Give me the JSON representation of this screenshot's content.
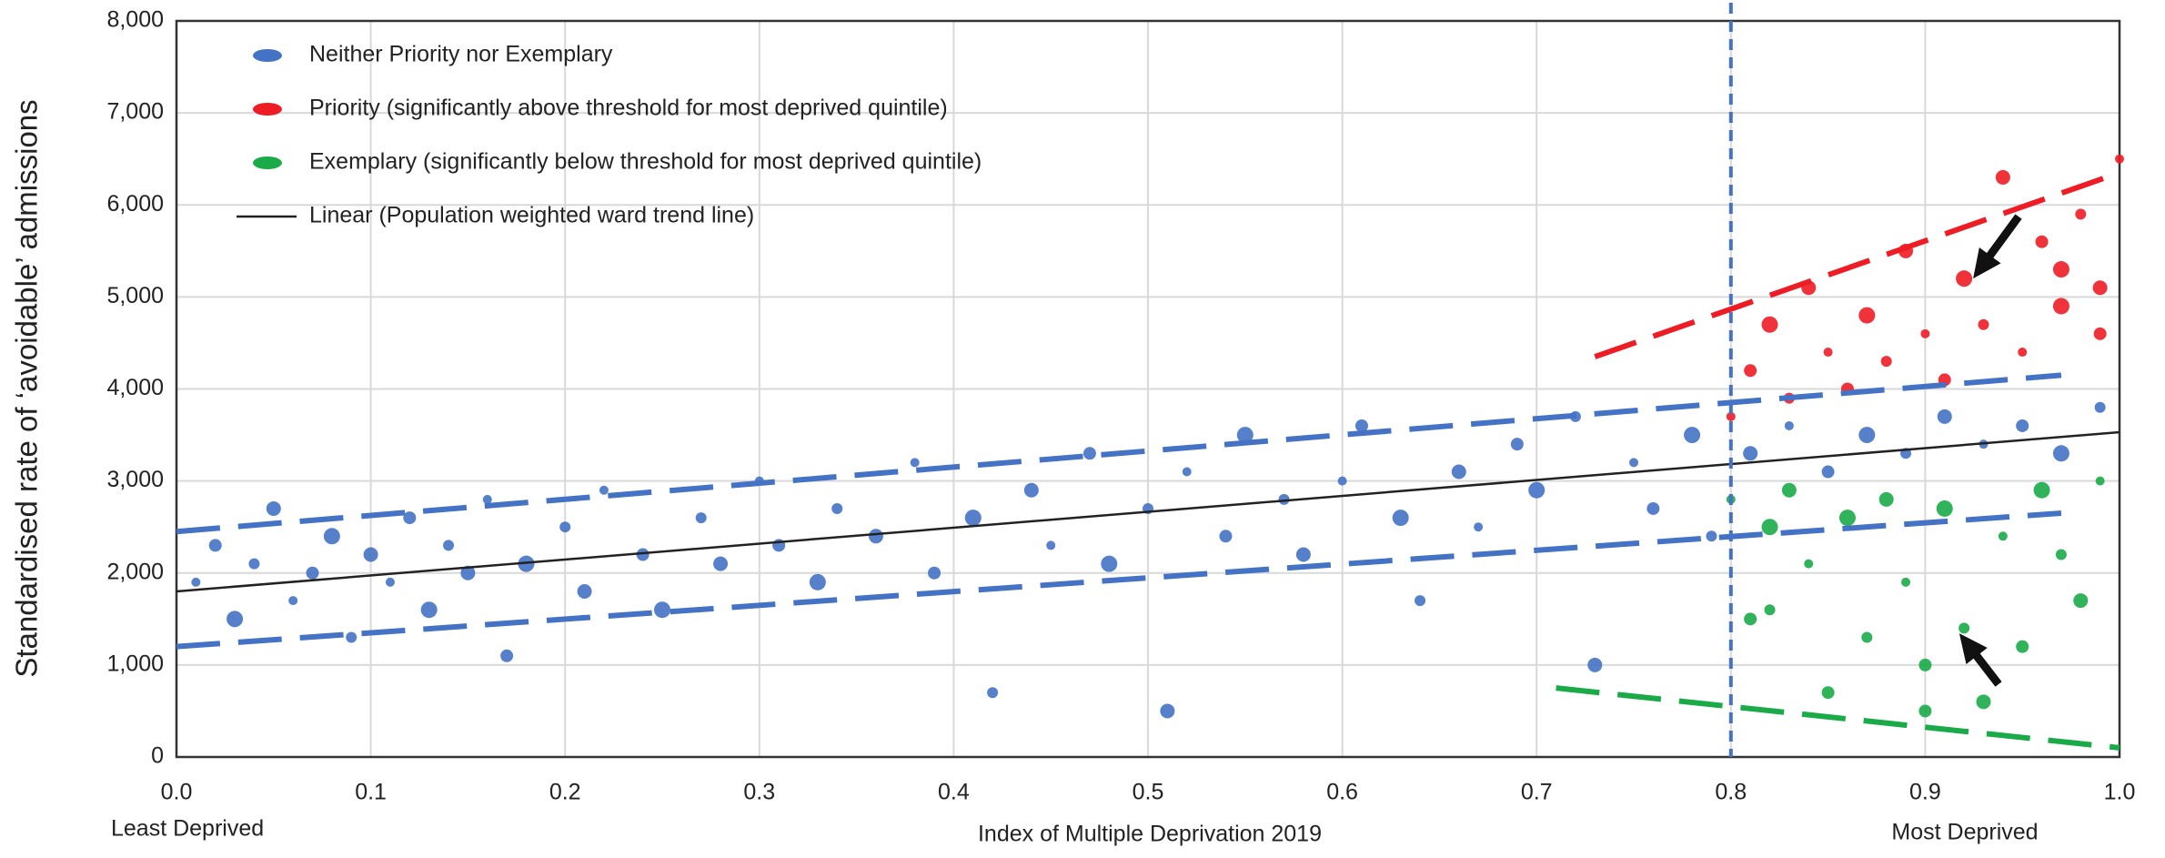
{
  "chart_data": {
    "type": "scatter",
    "y_axis_label": "Standardised rate of ‘avoidable’ admissions",
    "x_axis_label": "Index of Multiple Deprivation 2019",
    "x_end_labels": [
      "Least Deprived",
      "Most Deprived"
    ],
    "xlim": [
      0,
      1
    ],
    "ylim": [
      0,
      8000
    ],
    "xticks": [
      {
        "value": 0,
        "label": "0.0"
      },
      0.1,
      0.2,
      0.3,
      0.4,
      0.5,
      0.6,
      0.7,
      0.8,
      0.9,
      {
        "value": 1,
        "label": "1.0"
      }
    ],
    "yticks": [
      0,
      {
        "value": 1000,
        "label": "1,000"
      },
      {
        "value": 2000,
        "label": "2,000"
      },
      {
        "value": 3000,
        "label": "3,000"
      },
      {
        "value": 4000,
        "label": "4,000"
      },
      {
        "value": 5000,
        "label": "5,000"
      },
      {
        "value": 6000,
        "label": "6,000"
      },
      {
        "value": 7000,
        "label": "7,000"
      },
      {
        "value": 8000,
        "label": "8,000"
      }
    ],
    "grid": true,
    "legend": "top-left",
    "series": [
      {
        "name": "Neither Priority nor Exemplary",
        "color": "#4472c4",
        "x": [
          0.01,
          0.02,
          0.03,
          0.04,
          0.05,
          0.06,
          0.07,
          0.08,
          0.09,
          0.1,
          0.11,
          0.12,
          0.13,
          0.14,
          0.15,
          0.16,
          0.17,
          0.18,
          0.2,
          0.21,
          0.22,
          0.24,
          0.25,
          0.27,
          0.28,
          0.3,
          0.31,
          0.33,
          0.34,
          0.36,
          0.38,
          0.39,
          0.41,
          0.42,
          0.44,
          0.45,
          0.47,
          0.48,
          0.5,
          0.51,
          0.52,
          0.54,
          0.55,
          0.57,
          0.58,
          0.6,
          0.61,
          0.63,
          0.64,
          0.66,
          0.67,
          0.69,
          0.7,
          0.72,
          0.73,
          0.75,
          0.76,
          0.78,
          0.79,
          0.81,
          0.83,
          0.85,
          0.87,
          0.89,
          0.91,
          0.93,
          0.95,
          0.97,
          0.99
        ],
        "values": [
          1900,
          2300,
          1500,
          2100,
          2700,
          1700,
          2000,
          2400,
          1300,
          2200,
          1900,
          2600,
          1600,
          2300,
          2000,
          2800,
          1100,
          2100,
          2500,
          1800,
          2900,
          2200,
          1600,
          2600,
          2100,
          3000,
          2300,
          1900,
          2700,
          2400,
          3200,
          2000,
          2600,
          700,
          2900,
          2300,
          3300,
          2100,
          2700,
          500,
          3100,
          2400,
          3500,
          2800,
          2200,
          3000,
          3600,
          2600,
          1700,
          3100,
          2500,
          3400,
          2900,
          3700,
          1000,
          3200,
          2700,
          3500,
          2400,
          3300,
          3600,
          3100,
          3500,
          3300,
          3700,
          3400,
          3600,
          3300,
          3800
        ]
      },
      {
        "name": "Priority (significantly above threshold for most deprived quintile)",
        "color": "#ee1c25",
        "x": [
          0.8,
          0.81,
          0.82,
          0.83,
          0.84,
          0.85,
          0.86,
          0.87,
          0.88,
          0.89,
          0.9,
          0.91,
          0.92,
          0.93,
          0.94,
          0.95,
          0.96,
          0.97,
          0.98,
          0.99,
          1.0,
          0.99,
          0.97
        ],
        "values": [
          3700,
          4200,
          4700,
          3900,
          5100,
          4400,
          4000,
          4800,
          4300,
          5500,
          4600,
          4100,
          5200,
          4700,
          6300,
          4400,
          5600,
          4900,
          5900,
          5100,
          6500,
          4600,
          5300
        ]
      },
      {
        "name": "Exemplary (significantly below threshold for most deprived quintile)",
        "color": "#1aab48",
        "x": [
          0.8,
          0.81,
          0.82,
          0.82,
          0.83,
          0.84,
          0.85,
          0.86,
          0.87,
          0.88,
          0.89,
          0.9,
          0.91,
          0.92,
          0.93,
          0.94,
          0.95,
          0.96,
          0.97,
          0.98,
          0.99,
          0.9
        ],
        "values": [
          2800,
          1500,
          2500,
          1600,
          2900,
          2100,
          700,
          2600,
          1300,
          2800,
          1900,
          1000,
          2700,
          1400,
          600,
          2400,
          1200,
          2900,
          2200,
          1700,
          3000,
          500
        ]
      }
    ],
    "trend_line": {
      "name": "Linear (Population weighted ward trend line)",
      "color": "#222222",
      "x": [
        0,
        1
      ],
      "values": [
        1800,
        3530
      ]
    },
    "reference_lines": [
      {
        "color": "#4472c4",
        "x": [
          0,
          0.97
        ],
        "values": [
          2450,
          4150
        ]
      },
      {
        "color": "#4472c4",
        "x": [
          0,
          0.97
        ],
        "values": [
          1200,
          2650
        ]
      },
      {
        "color": "#ee1c25",
        "x": [
          0.73,
          1
        ],
        "values": [
          4350,
          6350
        ]
      },
      {
        "color": "#1aab48",
        "x": [
          0.71,
          1
        ],
        "values": [
          750,
          100
        ]
      }
    ],
    "threshold_x": 0.8,
    "threshold_color": "#4472c4"
  }
}
